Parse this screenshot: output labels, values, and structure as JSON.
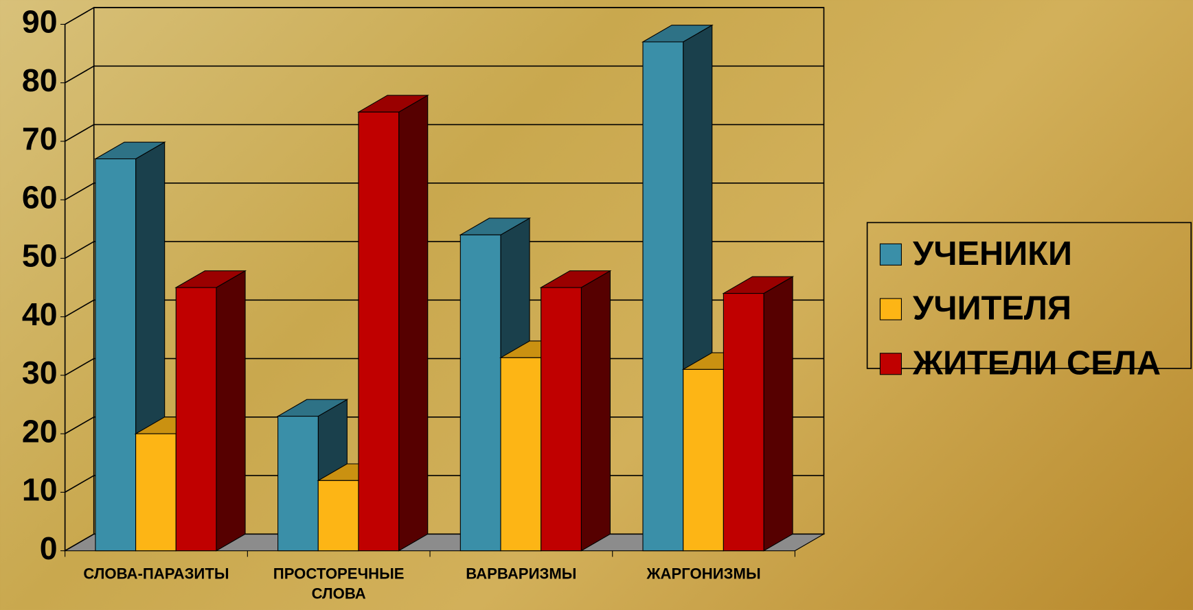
{
  "chart_data": {
    "type": "bar3d",
    "categories": [
      "СЛОВА-ПАРАЗИТЫ",
      "ПРОСТОРЕЧНЫЕ СЛОВА",
      "ВАРВАРИЗМЫ",
      "ЖАРГОНИЗМЫ"
    ],
    "series": [
      {
        "name": "УЧЕНИКИ",
        "color": "#3a8fa8",
        "values": [
          67,
          23,
          54,
          87
        ]
      },
      {
        "name": "УЧИТЕЛЯ",
        "color": "#fdb515",
        "values": [
          20,
          12,
          33,
          31
        ]
      },
      {
        "name": "ЖИТЕЛИ СЕЛА",
        "color": "#c00000",
        "values": [
          45,
          75,
          45,
          44
        ]
      }
    ],
    "ylim": [
      0,
      90
    ],
    "yticks": [
      0,
      10,
      20,
      30,
      40,
      50,
      60,
      70,
      80,
      90
    ],
    "grid": true,
    "legend": "right"
  }
}
